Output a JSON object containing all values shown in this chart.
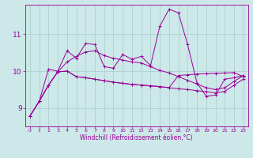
{
  "xlabel": "Windchill (Refroidissement éolien,°C)",
  "bg_color": "#cce8e8",
  "line_color": "#990099",
  "grid_color": "#aacccc",
  "x_ticks": [
    0,
    1,
    2,
    3,
    4,
    5,
    6,
    7,
    8,
    9,
    10,
    11,
    12,
    13,
    14,
    15,
    16,
    17,
    18,
    19,
    20,
    21,
    22,
    23
  ],
  "y_ticks": [
    9,
    10,
    11
  ],
  "ylim": [
    8.5,
    11.8
  ],
  "xlim": [
    -0.5,
    23.5
  ],
  "series": [
    [
      8.78,
      9.18,
      9.62,
      9.98,
      10.0,
      9.85,
      9.82,
      9.78,
      9.74,
      9.7,
      9.67,
      9.64,
      9.62,
      9.6,
      9.58,
      9.55,
      9.52,
      9.5,
      9.47,
      9.44,
      9.41,
      9.45,
      9.62,
      9.78
    ],
    [
      8.78,
      9.18,
      9.62,
      9.98,
      10.0,
      9.85,
      9.82,
      9.78,
      9.74,
      9.7,
      9.67,
      9.64,
      9.62,
      9.6,
      9.58,
      9.55,
      9.88,
      9.9,
      9.92,
      9.93,
      9.94,
      9.95,
      9.96,
      9.85
    ],
    [
      8.78,
      9.18,
      9.62,
      9.98,
      10.25,
      10.4,
      10.52,
      10.55,
      10.42,
      10.35,
      10.3,
      10.25,
      10.22,
      10.12,
      10.02,
      9.95,
      9.85,
      9.75,
      9.65,
      9.55,
      9.5,
      9.55,
      9.72,
      9.88
    ],
    [
      8.78,
      9.18,
      10.05,
      10.0,
      10.55,
      10.35,
      10.75,
      10.72,
      10.12,
      10.08,
      10.45,
      10.32,
      10.4,
      10.15,
      11.22,
      11.68,
      11.58,
      10.72,
      9.68,
      9.32,
      9.35,
      9.78,
      9.82,
      9.88
    ]
  ]
}
